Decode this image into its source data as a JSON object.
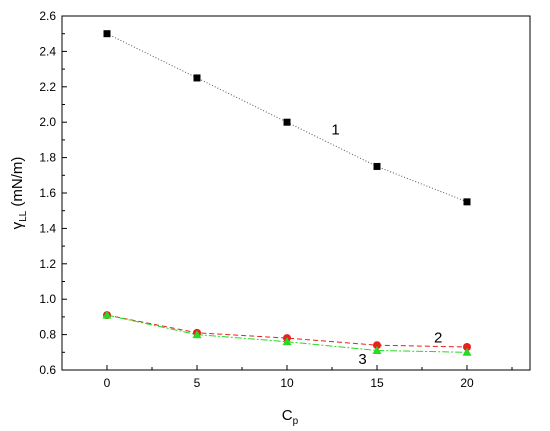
{
  "chart_data": {
    "type": "line",
    "title": "",
    "xlabel": {
      "main": "C",
      "sub": "p"
    },
    "ylabel": {
      "main": "γ",
      "sub": "LL",
      "unit": " (mN/m)"
    },
    "xlim": [
      -2.5,
      23.5
    ],
    "ylim": [
      0.6,
      2.6
    ],
    "xticks": [
      0,
      5,
      10,
      15,
      20
    ],
    "yticks": [
      0.6,
      0.8,
      1.0,
      1.2,
      1.4,
      1.6,
      1.8,
      2.0,
      2.2,
      2.4,
      2.6
    ],
    "x": [
      0,
      5,
      10,
      15,
      20
    ],
    "grid": false,
    "series": [
      {
        "name": "1",
        "values": [
          2.5,
          2.25,
          2.0,
          1.75,
          1.55
        ],
        "marker": "square",
        "color": "#000000",
        "line_color": "#555555",
        "dash": "1,2"
      },
      {
        "name": "2",
        "values": [
          0.91,
          0.81,
          0.78,
          0.74,
          0.73
        ],
        "marker": "circle",
        "color": "#e8211d",
        "line_color": "#e8211d",
        "dash": "5,3"
      },
      {
        "name": "3",
        "values": [
          0.91,
          0.8,
          0.76,
          0.71,
          0.7
        ],
        "marker": "triangle",
        "color": "#22dd22",
        "line_color": "#22dd22",
        "dash": "7,2,2,2"
      }
    ],
    "annotations": [
      {
        "text": "1",
        "x": 12.7,
        "y": 1.93
      },
      {
        "text": "2",
        "x": 18.4,
        "y": 0.755
      },
      {
        "text": "3",
        "x": 14.2,
        "y": 0.635
      }
    ]
  }
}
